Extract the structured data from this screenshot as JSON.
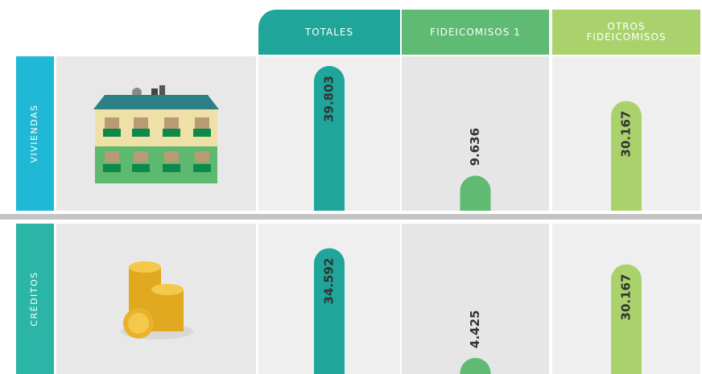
{
  "columns": [
    "TOTALES",
    "FIDEICOMISOS 1",
    "OTROS FIDEICOMISOS"
  ],
  "colors": [
    "#1fa59a",
    "#5fba74",
    "#a9d26d"
  ],
  "rows": [
    {
      "label": "VIVIENDAS",
      "color": "#1fb8d6",
      "values": [
        39803,
        9636,
        30167
      ],
      "value_labels": [
        "39.803",
        "9.636",
        "30.167"
      ]
    },
    {
      "label": "CRÉDITOS",
      "color": "#2ab5a6",
      "values": [
        34592,
        4425,
        30167
      ],
      "value_labels": [
        "34.592",
        "4.425",
        "30.167"
      ]
    }
  ]
}
